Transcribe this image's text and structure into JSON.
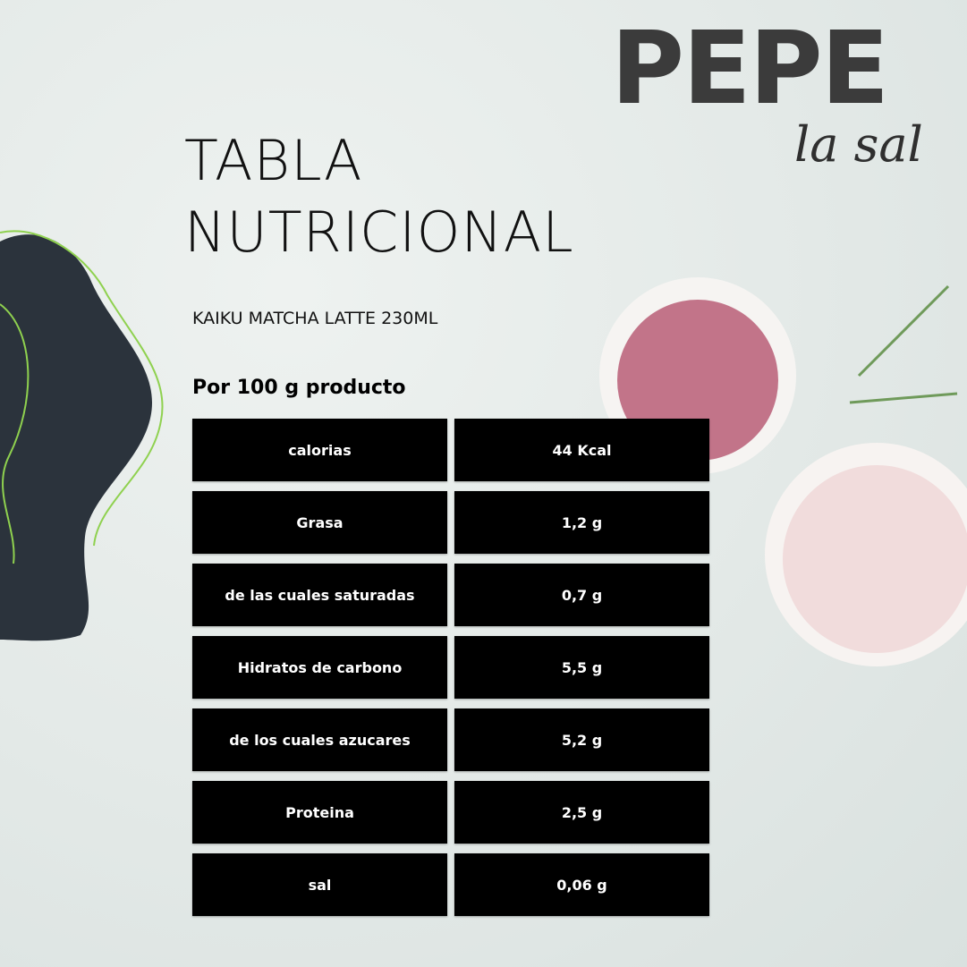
{
  "logo": {
    "brand": "PEPE",
    "tagline": "la sal"
  },
  "title": {
    "line1": "TABLA",
    "line2": "NUTRICIONAL"
  },
  "product": "KAIKU MATCHA LATTE 230ML",
  "per_label": "Por 100 g producto",
  "colors": {
    "cell_bg": "#000000",
    "cell_text": "#ffffff",
    "blob": "#2b333c",
    "accent_lines": "#8fd14f",
    "logo": "#3b3b3b"
  },
  "rows": [
    {
      "label": "calorias",
      "value": "44 Kcal"
    },
    {
      "label": "Grasa",
      "value": "1,2 g"
    },
    {
      "label": "de las cuales saturadas",
      "value": "0,7 g"
    },
    {
      "label": "Hidratos de carbono",
      "value": "5,5 g"
    },
    {
      "label": "de los cuales azucares",
      "value": "5,2 g"
    },
    {
      "label": "Proteina",
      "value": "2,5 g"
    },
    {
      "label": "sal",
      "value": "0,06 g"
    }
  ]
}
